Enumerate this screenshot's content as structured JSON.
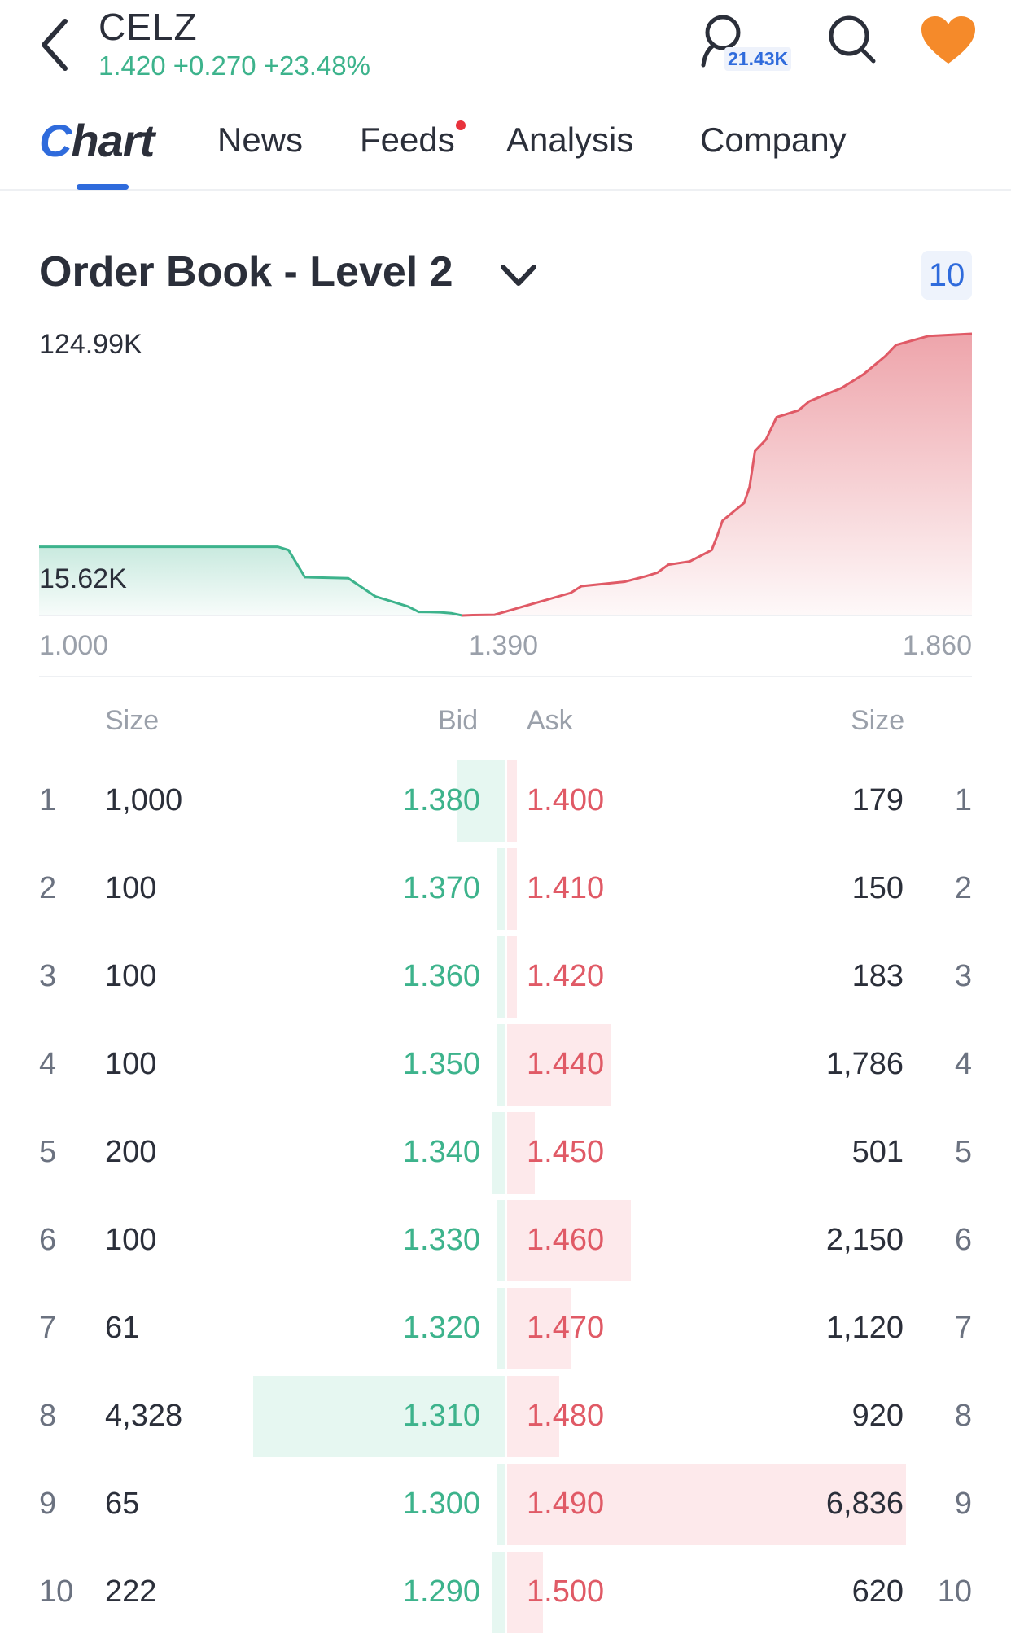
{
  "header": {
    "ticker": "CELZ",
    "quote": "1.420 +0.270 +23.48%",
    "followers": "21.43K",
    "icons": {
      "back": "back-chevron-icon",
      "user": "user-icon",
      "search": "search-icon",
      "favorite": "heart-icon"
    },
    "heart_color": "#f58a2a"
  },
  "tabs": [
    {
      "label": "Chart"
    },
    {
      "label": "News"
    },
    {
      "label": "Feeds"
    },
    {
      "label": "Analysis"
    },
    {
      "label": "Company"
    }
  ],
  "order_book": {
    "title": "Order Book - Level 2",
    "levels": "10"
  },
  "chart_data": {
    "type": "area",
    "y_max_label": "124.99K",
    "y_min_label": "15.62K",
    "x_labels": [
      "1.000",
      "1.390",
      "1.860"
    ],
    "xlim": [
      1.0,
      1.86
    ],
    "ylim": [
      0,
      124990
    ],
    "bid_color": "#3db38c",
    "ask_color": "#e05a66",
    "bids": {
      "name": "",
      "x": [
        1.0,
        1.22,
        1.23,
        1.245,
        1.285,
        1.31,
        1.34,
        1.35,
        1.36,
        1.37,
        1.38,
        1.39
      ],
      "y": [
        30500,
        30500,
        29000,
        17000,
        16500,
        8500,
        4000,
        1600,
        1500,
        1400,
        1000,
        0
      ]
    },
    "asks": {
      "name": "",
      "x": [
        1.39,
        1.4,
        1.42,
        1.44,
        1.49,
        1.5,
        1.54,
        1.56,
        1.57,
        1.58,
        1.6,
        1.62,
        1.625,
        1.63,
        1.65,
        1.655,
        1.66,
        1.67,
        1.68,
        1.7,
        1.71,
        1.74,
        1.75,
        1.76,
        1.78,
        1.79,
        1.82,
        1.86
      ],
      "y": [
        0,
        180,
        330,
        3100,
        10000,
        13000,
        15000,
        17500,
        19000,
        22500,
        24000,
        29000,
        35000,
        42000,
        50000,
        57000,
        73000,
        78000,
        88000,
        91000,
        95000,
        101000,
        104000,
        107000,
        115000,
        120000,
        124000,
        125000
      ]
    }
  },
  "table": {
    "headers": {
      "bid_size": "Size",
      "bid": "Bid",
      "ask": "Ask",
      "ask_size": "Size"
    },
    "rows": [
      {
        "level": "1",
        "bid_size": "1,000",
        "bid": "1.380",
        "ask": "1.400",
        "ask_size": "179",
        "ask_level": "1",
        "bid_bar": 0.12,
        "ask_bar": 0.02
      },
      {
        "level": "2",
        "bid_size": "100",
        "bid": "1.370",
        "ask": "1.410",
        "ask_size": "150",
        "ask_level": "2",
        "bid_bar": 0.01,
        "ask_bar": 0.02
      },
      {
        "level": "3",
        "bid_size": "100",
        "bid": "1.360",
        "ask": "1.420",
        "ask_size": "183",
        "ask_level": "3",
        "bid_bar": 0.01,
        "ask_bar": 0.02
      },
      {
        "level": "4",
        "bid_size": "100",
        "bid": "1.350",
        "ask": "1.440",
        "ask_size": "1,786",
        "ask_level": "4",
        "bid_bar": 0.01,
        "ask_bar": 0.26
      },
      {
        "level": "5",
        "bid_size": "200",
        "bid": "1.340",
        "ask": "1.450",
        "ask_size": "501",
        "ask_level": "5",
        "bid_bar": 0.03,
        "ask_bar": 0.07
      },
      {
        "level": "6",
        "bid_size": "100",
        "bid": "1.330",
        "ask": "1.460",
        "ask_size": "2,150",
        "ask_level": "6",
        "bid_bar": 0.01,
        "ask_bar": 0.31
      },
      {
        "level": "7",
        "bid_size": "61",
        "bid": "1.320",
        "ask": "1.470",
        "ask_size": "1,120",
        "ask_level": "7",
        "bid_bar": 0.01,
        "ask_bar": 0.16
      },
      {
        "level": "8",
        "bid_size": "4,328",
        "bid": "1.310",
        "ask": "1.480",
        "ask_size": "920",
        "ask_level": "8",
        "bid_bar": 0.63,
        "ask_bar": 0.13
      },
      {
        "level": "9",
        "bid_size": "65",
        "bid": "1.300",
        "ask": "1.490",
        "ask_size": "6,836",
        "ask_level": "9",
        "bid_bar": 0.01,
        "ask_bar": 1.0
      },
      {
        "level": "10",
        "bid_size": "222",
        "bid": "1.290",
        "ask": "1.500",
        "ask_size": "620",
        "ask_level": "10",
        "bid_bar": 0.03,
        "ask_bar": 0.09
      }
    ]
  }
}
